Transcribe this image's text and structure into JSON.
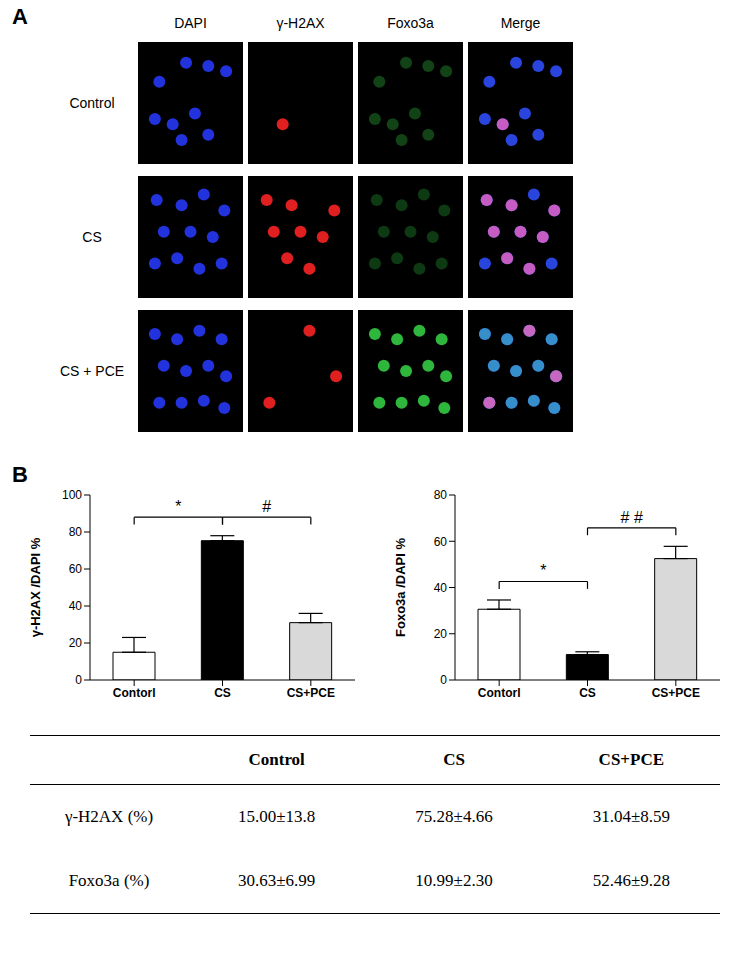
{
  "panel_a": {
    "label": "A",
    "columns": [
      "DAPI",
      "γ-H2AX",
      "Foxo3a",
      "Merge"
    ],
    "rows": [
      "Control",
      "CS",
      "CS + PCE"
    ]
  },
  "panel_b_label": "B",
  "chart_data": [
    {
      "type": "bar",
      "y_label": "γ-H2AX /DAPI %",
      "categories": [
        "Contorl",
        "CS",
        "CS+PCE"
      ],
      "values": [
        15,
        75.3,
        31
      ],
      "errors": [
        8,
        2.7,
        5
      ],
      "colors": [
        "#ffffff",
        "#000000",
        "#d9d9d9"
      ],
      "ylim": [
        0,
        100
      ],
      "yticks": [
        0,
        20,
        40,
        60,
        80,
        100
      ],
      "significance": [
        {
          "between": [
            0,
            1
          ],
          "label": "*"
        },
        {
          "between": [
            1,
            2
          ],
          "label": "#"
        }
      ]
    },
    {
      "type": "bar",
      "y_label": "Foxo3a /DAPI %",
      "categories": [
        "Contorl",
        "CS",
        "CS+PCE"
      ],
      "values": [
        30.6,
        11,
        52.5
      ],
      "errors": [
        4,
        1.2,
        5.3
      ],
      "colors": [
        "#ffffff",
        "#000000",
        "#d9d9d9"
      ],
      "ylim": [
        0,
        80
      ],
      "yticks": [
        0,
        20,
        40,
        60,
        80
      ],
      "significance": [
        {
          "between": [
            0,
            1
          ],
          "label": "*"
        },
        {
          "between": [
            1,
            2
          ],
          "label": "# #"
        }
      ]
    }
  ],
  "table": {
    "columns": [
      "Control",
      "CS",
      "CS+PCE"
    ],
    "rows": [
      {
        "label": "γ-H2AX (%)",
        "cells": [
          "15.00±13.8",
          "75.28±4.66",
          "31.04±8.59"
        ]
      },
      {
        "label": "Foxo3a (%)",
        "cells": [
          "30.63±6.99",
          "10.99±2.30",
          "52.46±9.28"
        ]
      }
    ]
  }
}
